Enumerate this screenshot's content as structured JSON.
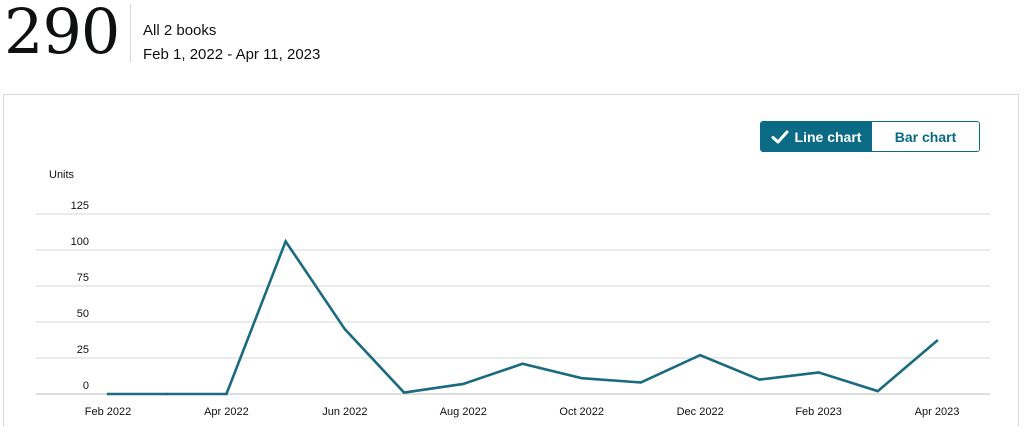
{
  "summary": {
    "total_units": "290",
    "scope_label": "All 2 books",
    "date_range": "Feb 1, 2022 - Apr 11, 2023"
  },
  "toggle": {
    "line_label": "Line chart",
    "bar_label": "Bar chart",
    "selected": "line"
  },
  "colors": {
    "accent": "#0b6b84",
    "line": "#1a6a80",
    "grid": "#d5d9d9"
  },
  "chart_data": {
    "type": "line",
    "ylabel": "Units",
    "ylim": [
      0,
      125
    ],
    "yticks": [
      0,
      25,
      50,
      75,
      100,
      125
    ],
    "grid": true,
    "x": [
      "Feb 2022",
      "Mar 2022",
      "Apr 2022",
      "May 2022",
      "Jun 2022",
      "Jul 2022",
      "Aug 2022",
      "Sep 2022",
      "Oct 2022",
      "Nov 2022",
      "Dec 2022",
      "Jan 2023",
      "Feb 2023",
      "Mar 2023",
      "Apr 2023"
    ],
    "xtick_labels": [
      "Feb 2022",
      "",
      "Apr 2022",
      "",
      "Jun 2022",
      "",
      "Aug 2022",
      "",
      "Oct 2022",
      "",
      "Dec 2022",
      "",
      "Feb 2023",
      "",
      "Apr 2023"
    ],
    "series": [
      {
        "values": [
          0,
          0,
          0,
          106,
          45,
          1,
          7,
          21,
          11,
          8,
          27,
          10,
          15,
          2,
          37
        ]
      }
    ]
  }
}
